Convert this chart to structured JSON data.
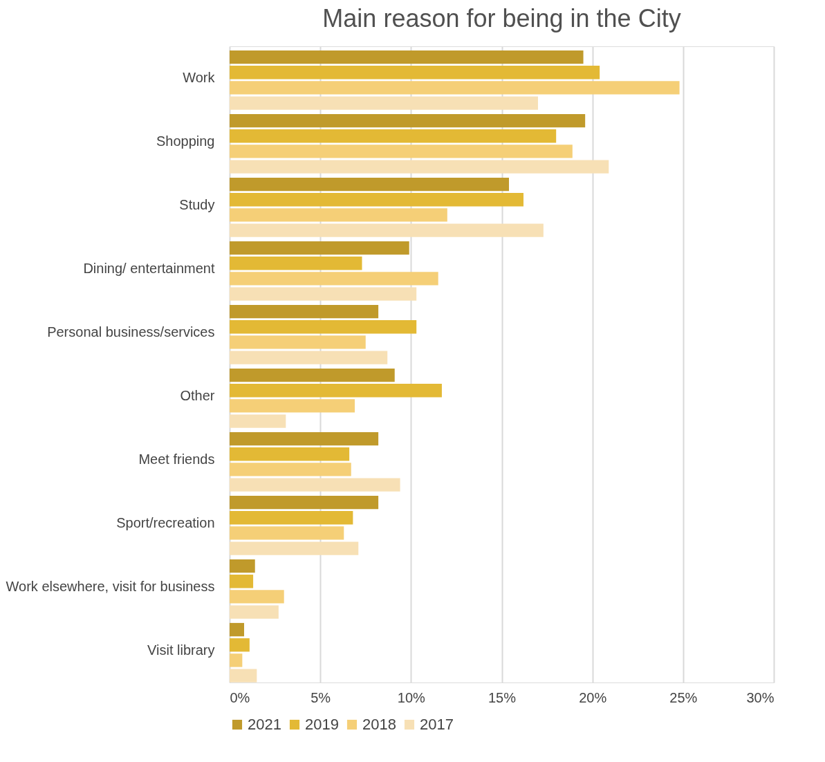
{
  "chart_data": {
    "type": "bar",
    "orientation": "horizontal",
    "title": "Main reason for being in the City",
    "categories": [
      "Work",
      "Shopping",
      "Study",
      "Dining/ entertainment",
      "Personal business/services",
      "Other",
      "Meet friends",
      "Sport/recreation",
      "Work elsewhere, visit for business",
      "Visit library"
    ],
    "series": [
      {
        "name": "2021",
        "color": "#c09a2b",
        "values": [
          19.5,
          19.6,
          15.4,
          9.9,
          8.2,
          9.1,
          8.2,
          8.2,
          1.4,
          0.8
        ]
      },
      {
        "name": "2019",
        "color": "#e3b935",
        "values": [
          20.4,
          18.0,
          16.2,
          7.3,
          10.3,
          11.7,
          6.6,
          6.8,
          1.3,
          1.1
        ]
      },
      {
        "name": "2018",
        "color": "#f5cf77",
        "values": [
          24.8,
          18.9,
          12.0,
          11.5,
          7.5,
          6.9,
          6.7,
          6.3,
          3.0,
          0.7
        ]
      },
      {
        "name": "2017",
        "color": "#f7e0b5",
        "values": [
          17.0,
          20.9,
          17.3,
          10.3,
          8.7,
          3.1,
          9.4,
          7.1,
          2.7,
          1.5
        ]
      }
    ],
    "xlim": [
      0,
      30
    ],
    "xticks": [
      {
        "value": 0,
        "label": "0%"
      },
      {
        "value": 5,
        "label": "5%"
      },
      {
        "value": 10,
        "label": "10%"
      },
      {
        "value": 15,
        "label": "15%"
      },
      {
        "value": 20,
        "label": "20%"
      },
      {
        "value": 25,
        "label": "25%"
      },
      {
        "value": 30,
        "label": "30%"
      }
    ],
    "grid": "x",
    "legend": "bottom"
  }
}
